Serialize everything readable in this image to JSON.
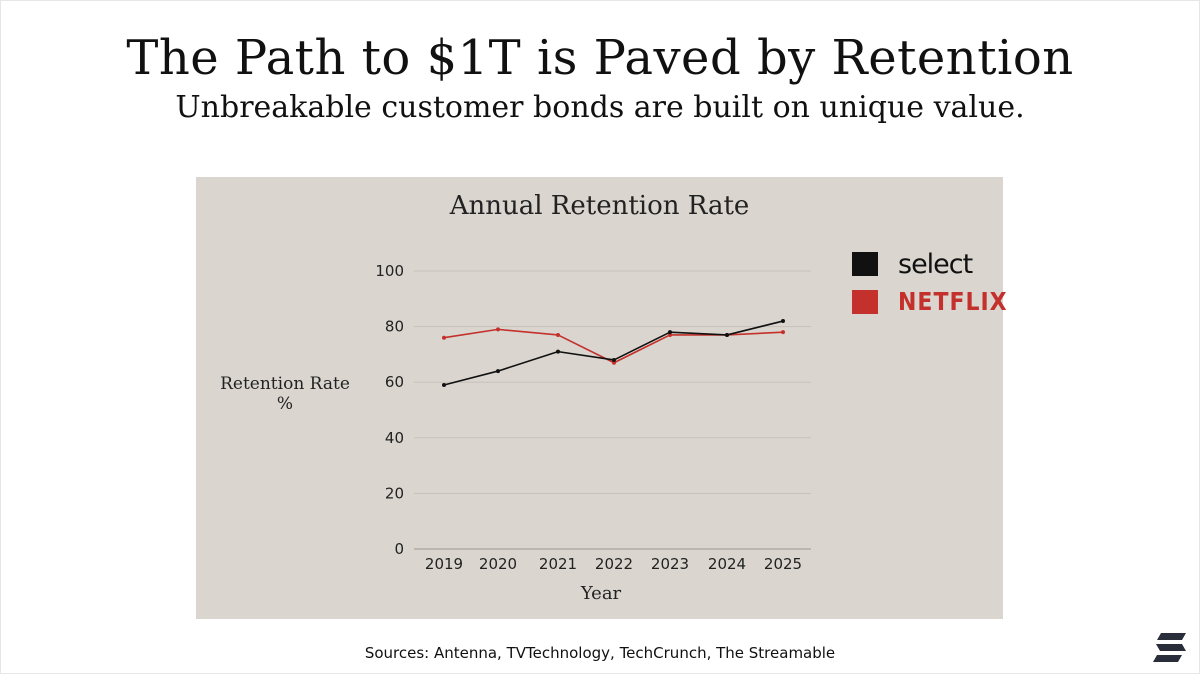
{
  "page": {
    "title": "The Path to $1T is Paved by Retention",
    "subtitle": "Unbreakable customer bonds are built on unique value.",
    "sources": "Sources: Antenna, TVTechnology, TechCrunch, The Streamable"
  },
  "colors": {
    "card_bg": "#dad6cf",
    "select": "#111111",
    "netflix": "#c4302b",
    "grid": "#c6c1b9"
  },
  "chart_data": {
    "type": "line",
    "title": "Annual Retention Rate",
    "xlabel": "Year",
    "ylabel_line1": "Retention Rate",
    "ylabel_line2": "%",
    "categories": [
      "2019",
      "2020",
      "2021",
      "2022",
      "2023",
      "2024",
      "2025"
    ],
    "yticks": [
      0,
      20,
      40,
      60,
      80,
      100
    ],
    "ylim": [
      0,
      100
    ],
    "grid": true,
    "legend_position": "right",
    "series": [
      {
        "name": "select",
        "color": "#111111",
        "values": [
          59,
          64,
          71,
          68,
          78,
          77,
          82
        ]
      },
      {
        "name": "NETFLIX",
        "color": "#c4302b",
        "values": [
          76,
          79,
          77,
          67,
          77,
          77,
          78
        ]
      }
    ]
  }
}
